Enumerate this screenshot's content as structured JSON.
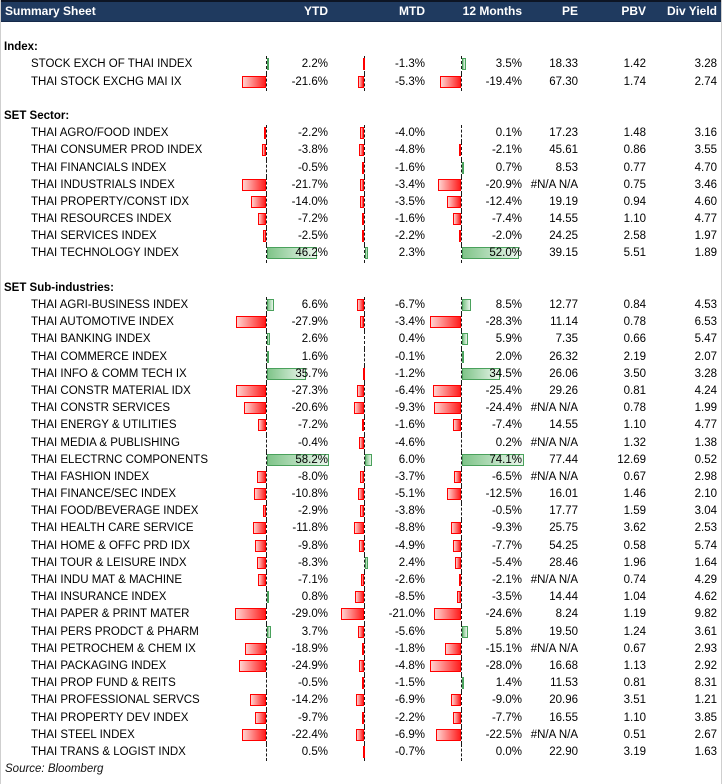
{
  "header": {
    "title": "Summary Sheet"
  },
  "footer": {
    "source": "Source: Bloomberg"
  },
  "colors": {
    "header_bg": "#1f3a5f",
    "header_text": "#ffffff",
    "negative_bar_border": "#ff0000",
    "negative_bar_fill": "#ff1f1f",
    "positive_bar_border": "#4aa15c",
    "positive_bar_fill": "#7fc489",
    "axis_line": "#1a1a1a"
  },
  "chart_data": {
    "type": "table",
    "title": "Summary Sheet",
    "columns": [
      "YTD",
      "MTD",
      "12 Months",
      "PE",
      "PBV",
      "Div Yield"
    ],
    "bar_columns": [
      "YTD",
      "MTD",
      "12 Months"
    ],
    "bar_axis_note": "in-cell data bars, dashed zero axis, red=negative gradient, green=positive gradient, approx range -29% to +74%",
    "sections": [
      {
        "label": "Index:",
        "rows": [
          {
            "name": "STOCK EXCH OF THAI INDEX",
            "ytd": 2.2,
            "mtd": -1.3,
            "m12": 3.5,
            "pe": "18.33",
            "pbv": "1.42",
            "div_yield": "3.28"
          },
          {
            "name": "THAI STOCK EXCHG MAI IX",
            "ytd": -21.6,
            "mtd": -5.3,
            "m12": -19.4,
            "pe": "67.30",
            "pbv": "1.74",
            "div_yield": "2.74"
          }
        ]
      },
      {
        "label": "SET Sector:",
        "rows": [
          {
            "name": "THAI AGRO/FOOD INDEX",
            "ytd": -2.2,
            "mtd": -4.0,
            "m12": 0.1,
            "pe": "17.23",
            "pbv": "1.48",
            "div_yield": "3.16"
          },
          {
            "name": "THAI CONSUMER PROD INDEX",
            "ytd": -3.8,
            "mtd": -4.8,
            "m12": -2.1,
            "pe": "45.61",
            "pbv": "0.86",
            "div_yield": "3.55"
          },
          {
            "name": "THAI FINANCIALS INDEX",
            "ytd": -0.5,
            "mtd": -1.6,
            "m12": 0.7,
            "pe": "8.53",
            "pbv": "0.77",
            "div_yield": "4.70"
          },
          {
            "name": "THAI INDUSTRIALS INDEX",
            "ytd": -21.7,
            "mtd": -3.4,
            "m12": -20.9,
            "pe": "#N/A N/A",
            "pbv": "0.75",
            "div_yield": "3.46"
          },
          {
            "name": "THAI PROPERTY/CONST IDX",
            "ytd": -14.0,
            "mtd": -3.5,
            "m12": -12.4,
            "pe": "19.19",
            "pbv": "0.94",
            "div_yield": "4.60"
          },
          {
            "name": "THAI RESOURCES INDEX",
            "ytd": -7.2,
            "mtd": -1.6,
            "m12": -7.4,
            "pe": "14.55",
            "pbv": "1.10",
            "div_yield": "4.77"
          },
          {
            "name": "THAI SERVICES INDEX",
            "ytd": -2.5,
            "mtd": -2.2,
            "m12": -2.0,
            "pe": "24.25",
            "pbv": "2.58",
            "div_yield": "1.97"
          },
          {
            "name": "THAI TECHNOLOGY INDEX",
            "ytd": 46.2,
            "mtd": 2.3,
            "m12": 52.0,
            "pe": "39.15",
            "pbv": "5.51",
            "div_yield": "1.89"
          }
        ]
      },
      {
        "label": "SET Sub-industries:",
        "rows": [
          {
            "name": "THAI AGRI-BUSINESS INDEX",
            "ytd": 6.6,
            "mtd": -6.7,
            "m12": 8.5,
            "pe": "12.77",
            "pbv": "0.84",
            "div_yield": "4.53"
          },
          {
            "name": "THAI AUTOMOTIVE INDEX",
            "ytd": -27.9,
            "mtd": -3.4,
            "m12": -28.3,
            "pe": "11.14",
            "pbv": "0.78",
            "div_yield": "6.53"
          },
          {
            "name": "THAI BANKING INDEX",
            "ytd": 2.6,
            "mtd": 0.4,
            "m12": 5.9,
            "pe": "7.35",
            "pbv": "0.66",
            "div_yield": "5.47"
          },
          {
            "name": "THAI COMMERCE INDEX",
            "ytd": 1.6,
            "mtd": -0.1,
            "m12": 2.0,
            "pe": "26.32",
            "pbv": "2.19",
            "div_yield": "2.07"
          },
          {
            "name": "THAI INFO & COMM TECH IX",
            "ytd": 35.7,
            "mtd": -1.2,
            "m12": 34.5,
            "pe": "26.06",
            "pbv": "3.50",
            "div_yield": "3.28"
          },
          {
            "name": "THAI CONSTR MATERIAL IDX",
            "ytd": -27.3,
            "mtd": -6.4,
            "m12": -25.4,
            "pe": "29.26",
            "pbv": "0.81",
            "div_yield": "4.24"
          },
          {
            "name": "THAI CONSTR SERVICES",
            "ytd": -20.6,
            "mtd": -9.3,
            "m12": -24.4,
            "pe": "#N/A N/A",
            "pbv": "0.78",
            "div_yield": "1.99"
          },
          {
            "name": "THAI ENERGY & UTILITIES",
            "ytd": -7.2,
            "mtd": -1.6,
            "m12": -7.4,
            "pe": "14.55",
            "pbv": "1.10",
            "div_yield": "4.77"
          },
          {
            "name": "THAI MEDIA & PUBLISHING",
            "ytd": -0.4,
            "mtd": -4.6,
            "m12": 0.2,
            "pe": "#N/A N/A",
            "pbv": "1.32",
            "div_yield": "1.38"
          },
          {
            "name": "THAI ELECTRNC COMPONENTS",
            "ytd": 58.2,
            "mtd": 6.0,
            "m12": 74.1,
            "pe": "77.44",
            "pbv": "12.69",
            "div_yield": "0.52"
          },
          {
            "name": "THAI FASHION INDEX",
            "ytd": -8.0,
            "mtd": -3.7,
            "m12": -6.5,
            "pe": "#N/A N/A",
            "pbv": "0.67",
            "div_yield": "2.98"
          },
          {
            "name": "THAI FINANCE/SEC INDEX",
            "ytd": -10.8,
            "mtd": -5.1,
            "m12": -12.5,
            "pe": "16.01",
            "pbv": "1.46",
            "div_yield": "2.10"
          },
          {
            "name": "THAI FOOD/BEVERAGE INDEX",
            "ytd": -2.9,
            "mtd": -3.8,
            "m12": -0.5,
            "pe": "17.77",
            "pbv": "1.59",
            "div_yield": "3.04"
          },
          {
            "name": "THAI HEALTH CARE SERVICE",
            "ytd": -11.8,
            "mtd": -8.8,
            "m12": -9.3,
            "pe": "25.75",
            "pbv": "3.62",
            "div_yield": "2.53"
          },
          {
            "name": "THAI HOME & OFFC PRD IDX",
            "ytd": -9.8,
            "mtd": -4.9,
            "m12": -7.7,
            "pe": "54.25",
            "pbv": "0.58",
            "div_yield": "5.74"
          },
          {
            "name": "THAI TOUR & LEISURE INDX",
            "ytd": -8.3,
            "mtd": 2.4,
            "m12": -5.4,
            "pe": "28.46",
            "pbv": "1.96",
            "div_yield": "1.64"
          },
          {
            "name": "THAI INDU MAT & MACHINE",
            "ytd": -7.1,
            "mtd": -2.6,
            "m12": -2.1,
            "pe": "#N/A N/A",
            "pbv": "0.74",
            "div_yield": "4.29"
          },
          {
            "name": "THAI INSURANCE INDEX",
            "ytd": 0.8,
            "mtd": -8.5,
            "m12": -3.5,
            "pe": "14.44",
            "pbv": "1.04",
            "div_yield": "4.62"
          },
          {
            "name": "THAI PAPER & PRINT MATER",
            "ytd": -29.0,
            "mtd": -21.0,
            "m12": -24.6,
            "pe": "8.24",
            "pbv": "1.19",
            "div_yield": "9.82"
          },
          {
            "name": "THAI PERS PRODCT & PHARM",
            "ytd": 3.7,
            "mtd": -5.6,
            "m12": 5.8,
            "pe": "19.50",
            "pbv": "1.24",
            "div_yield": "3.61"
          },
          {
            "name": "THAI PETROCHEM & CHEM IX",
            "ytd": -18.9,
            "mtd": -1.8,
            "m12": -15.1,
            "pe": "#N/A N/A",
            "pbv": "0.67",
            "div_yield": "2.93"
          },
          {
            "name": "THAI PACKAGING INDEX",
            "ytd": -24.9,
            "mtd": -4.8,
            "m12": -28.0,
            "pe": "16.68",
            "pbv": "1.13",
            "div_yield": "2.92"
          },
          {
            "name": "THAI PROP FUND & REITS",
            "ytd": -0.5,
            "mtd": -1.5,
            "m12": 1.4,
            "pe": "11.53",
            "pbv": "0.81",
            "div_yield": "8.31"
          },
          {
            "name": "THAI PROFESSIONAL SERVCS",
            "ytd": -14.2,
            "mtd": -6.9,
            "m12": -9.0,
            "pe": "20.96",
            "pbv": "3.51",
            "div_yield": "1.21"
          },
          {
            "name": "THAI PROPERTY DEV INDEX",
            "ytd": -9.7,
            "mtd": -2.2,
            "m12": -7.7,
            "pe": "16.55",
            "pbv": "1.10",
            "div_yield": "3.85"
          },
          {
            "name": "THAI STEEL INDEX",
            "ytd": -22.4,
            "mtd": -6.9,
            "m12": -22.5,
            "pe": "#N/A N/A",
            "pbv": "0.51",
            "div_yield": "2.67"
          },
          {
            "name": "THAI TRANS & LOGIST INDX",
            "ytd": 0.5,
            "mtd": -0.7,
            "m12": 0.0,
            "pe": "22.90",
            "pbv": "3.19",
            "div_yield": "1.63"
          }
        ]
      }
    ]
  }
}
